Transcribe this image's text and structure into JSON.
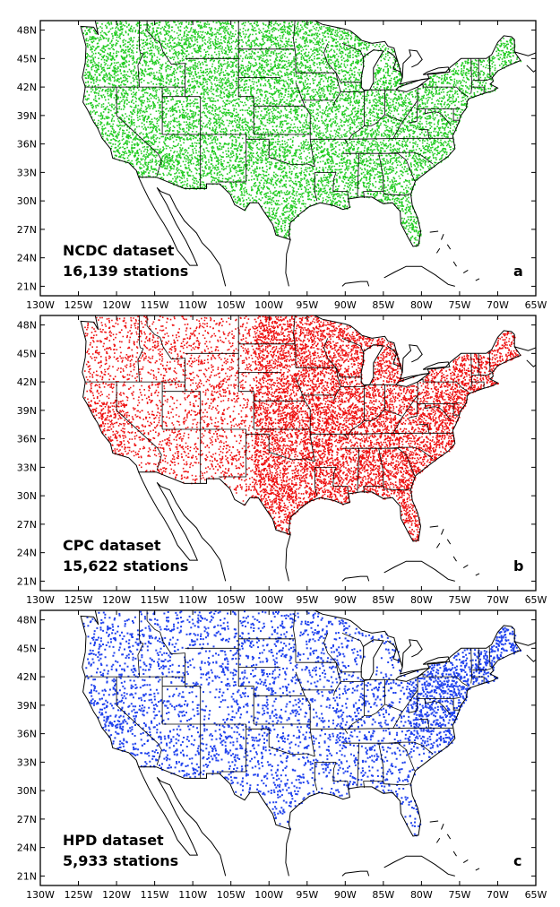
{
  "panels": [
    {
      "id": "a",
      "dataset_label": "NCDC dataset",
      "stations_label": "16,139 stations",
      "corner_label": "a",
      "color": "#22cc22"
    },
    {
      "id": "b",
      "dataset_label": "CPC dataset",
      "stations_label": "15,622 stations",
      "corner_label": "b",
      "color": "#ee1111"
    },
    {
      "id": "c",
      "dataset_label": "HPD dataset",
      "stations_label": "5,933 stations",
      "corner_label": "c",
      "color": "#2244ee"
    }
  ],
  "lat_labels": [
    "48N",
    "45N",
    "42N",
    "39N",
    "36N",
    "33N",
    "30N",
    "27N",
    "24N",
    "21N"
  ],
  "lon_labels": [
    "130W",
    "125W",
    "120W",
    "115W",
    "110W",
    "105W",
    "100W",
    "95W",
    "90W",
    "85W",
    "80W",
    "75W",
    "70W",
    "65W"
  ]
}
